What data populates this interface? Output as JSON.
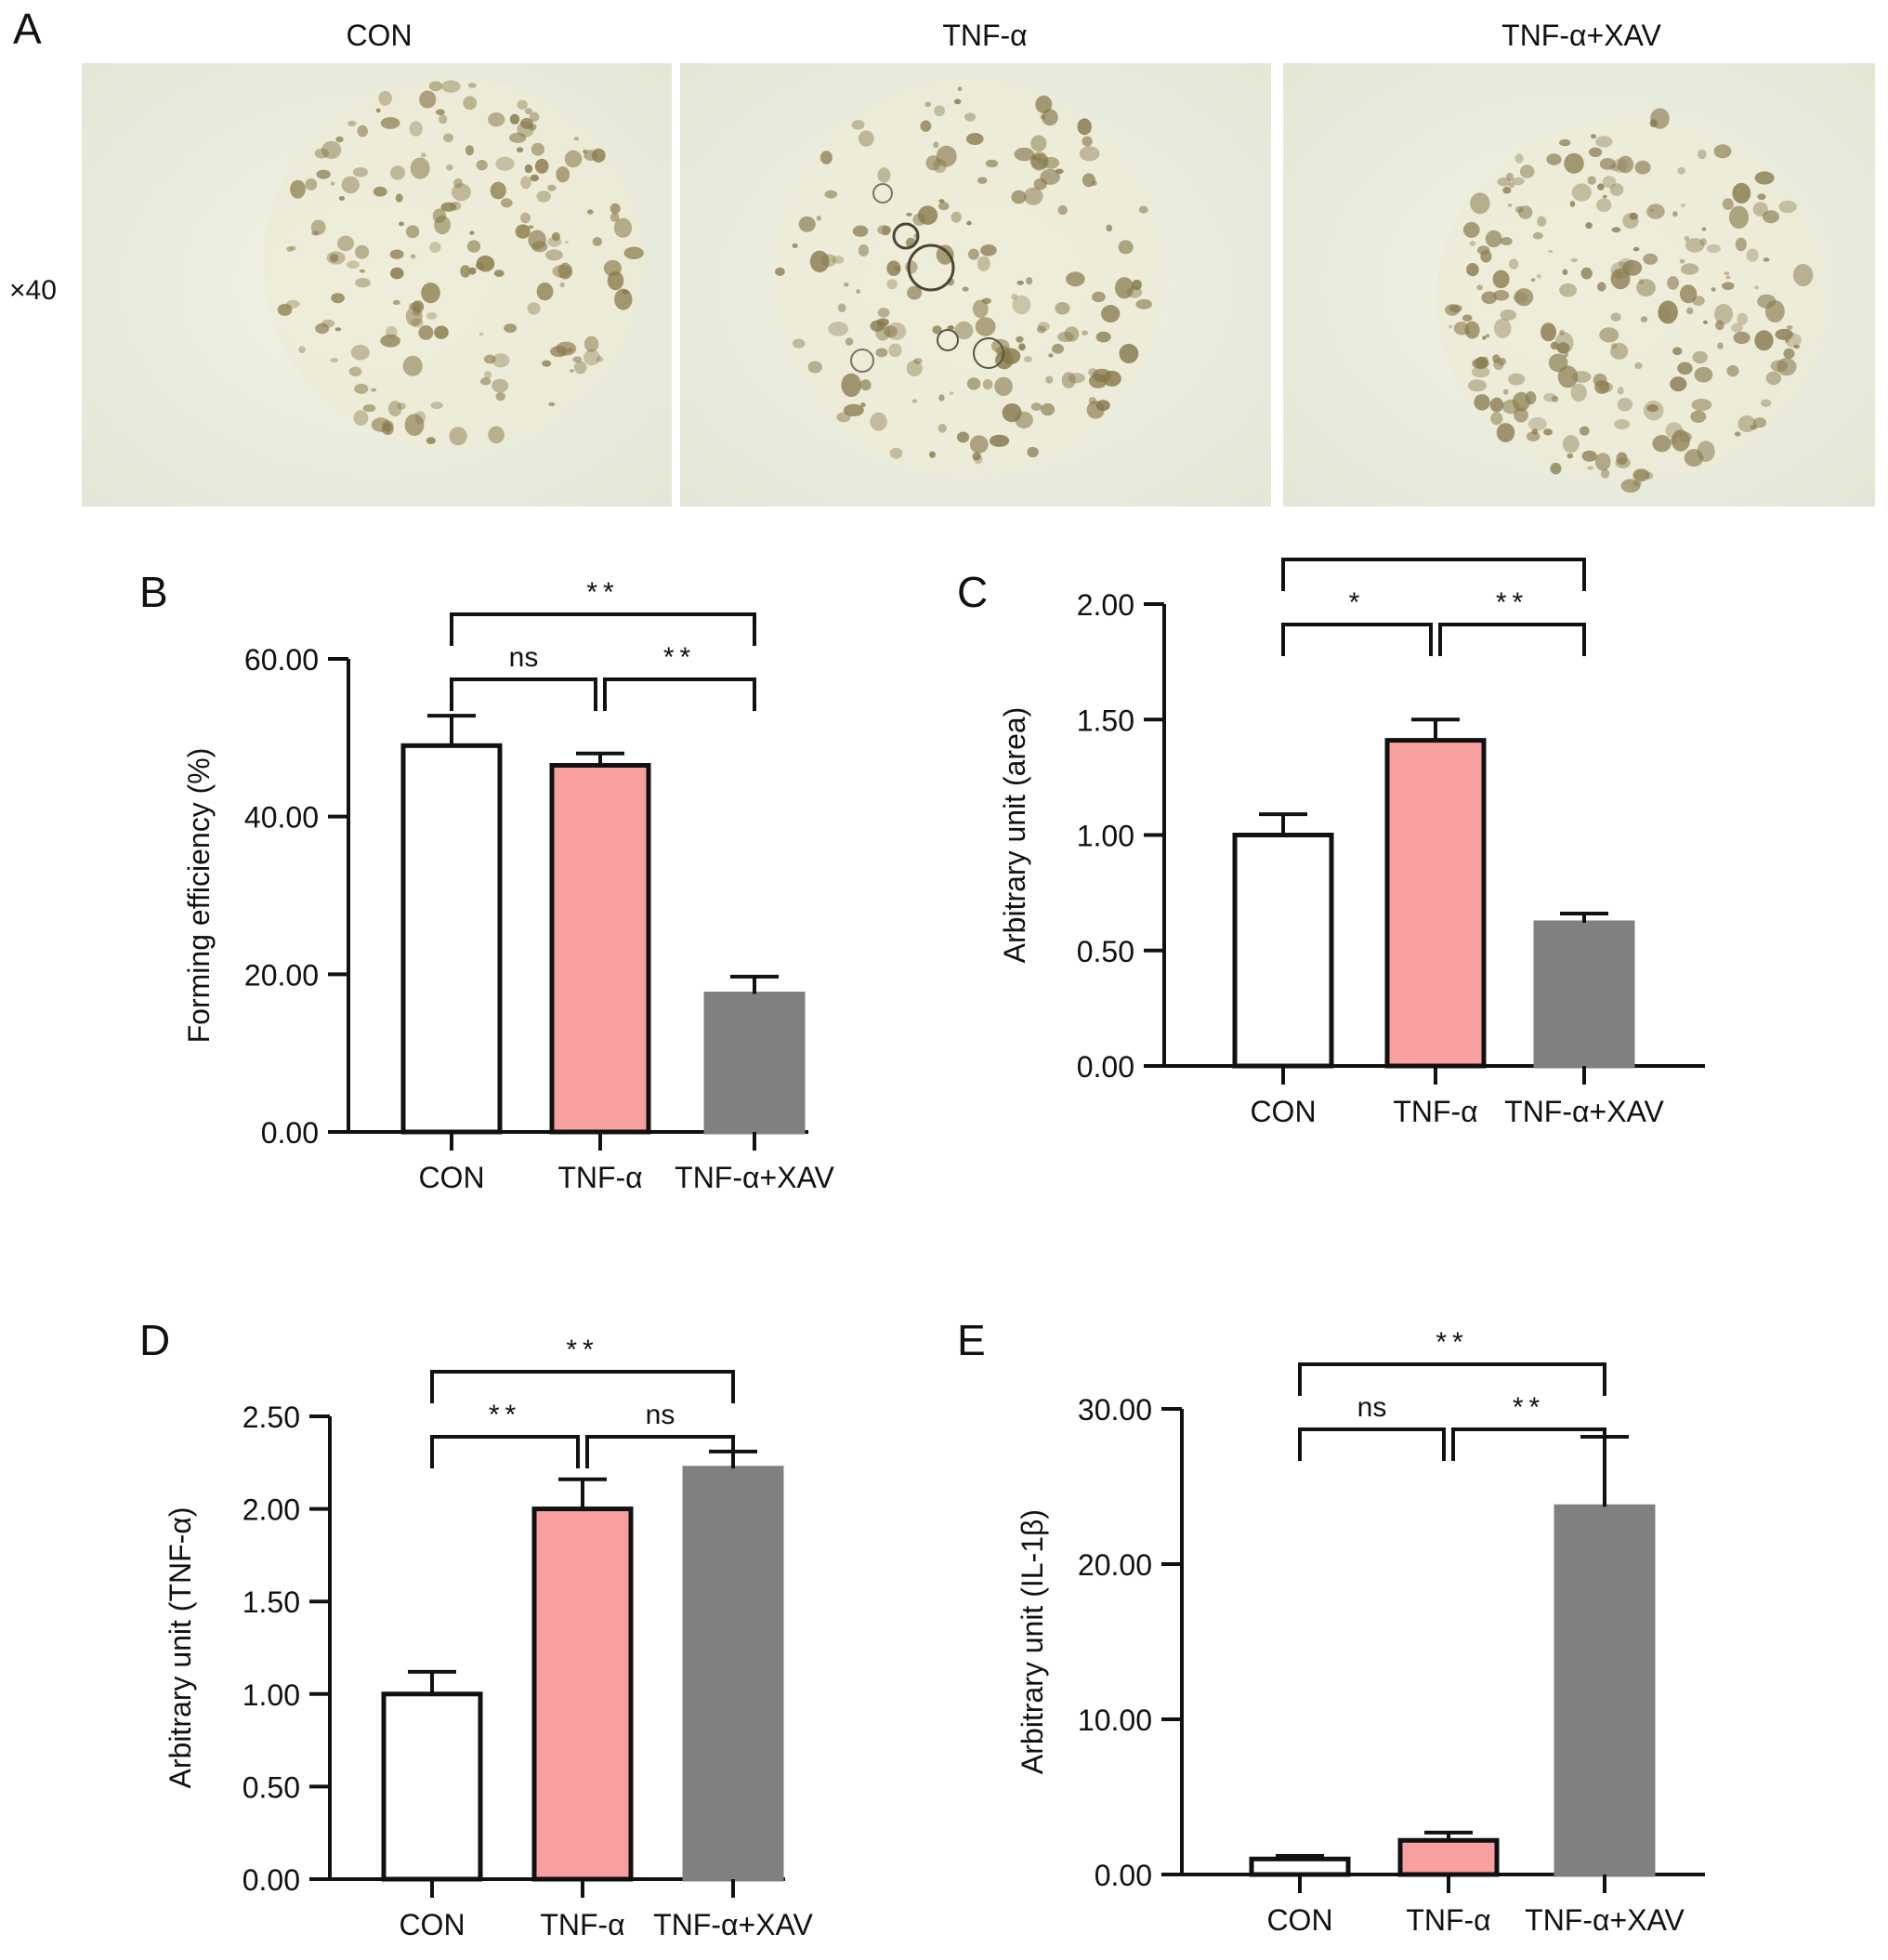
{
  "panel_a": {
    "letter": "A",
    "magnification": "×40",
    "images": [
      {
        "caption": "CON",
        "description": "Organoid culture, scattered small aggregates"
      },
      {
        "caption": "TNF-α",
        "description": "Organoid culture with cyst-like rings"
      },
      {
        "caption": "TNF-α+XAV",
        "description": "Organoid culture, denser small aggregates"
      }
    ]
  },
  "colors": {
    "con": "#ffffff",
    "tnf": "#f8a0a0",
    "tnfxav": "#808080",
    "axis": "#111111"
  },
  "chart_data": [
    {
      "panel": "B",
      "type": "bar",
      "categories": [
        "CON",
        "TNF-α",
        "TNF-α+XAV"
      ],
      "values": [
        49.0,
        46.5,
        17.5
      ],
      "errors": [
        3.8,
        1.5,
        2.2
      ],
      "ylabel": "Forming efficiency (%)",
      "ylim": [
        0,
        60
      ],
      "yticks": [
        "0.00",
        "20.00",
        "40.00",
        "60.00"
      ],
      "ytick_values": [
        0,
        20,
        40,
        60
      ],
      "significance": [
        {
          "from": 0,
          "to": 1,
          "label": "ns"
        },
        {
          "from": 1,
          "to": 2,
          "label": "**"
        },
        {
          "from": 0,
          "to": 2,
          "label": "**"
        }
      ]
    },
    {
      "panel": "C",
      "type": "bar",
      "categories": [
        "CON",
        "TNF-α",
        "TNF-α+XAV"
      ],
      "values": [
        1.0,
        1.41,
        0.62
      ],
      "errors": [
        0.09,
        0.09,
        0.04
      ],
      "ylabel": "Arbitrary unit (area)",
      "ylim": [
        0,
        2
      ],
      "yticks": [
        "0.00",
        "0.50",
        "1.00",
        "1.50",
        "2.00"
      ],
      "ytick_values": [
        0,
        0.5,
        1.0,
        1.5,
        2.0
      ],
      "significance": [
        {
          "from": 0,
          "to": 1,
          "label": "*"
        },
        {
          "from": 1,
          "to": 2,
          "label": "**"
        },
        {
          "from": 0,
          "to": 2,
          "label": "*"
        }
      ]
    },
    {
      "panel": "D",
      "type": "bar",
      "categories": [
        "CON",
        "TNF-α",
        "TNF-α+XAV"
      ],
      "values": [
        1.0,
        2.0,
        2.22
      ],
      "errors": [
        0.12,
        0.16,
        0.09
      ],
      "ylabel": "Arbitrary unit (TNF-α)",
      "ylim": [
        0,
        2.5
      ],
      "yticks": [
        "0.00",
        "0.50",
        "1.00",
        "1.50",
        "2.00",
        "2.50"
      ],
      "ytick_values": [
        0,
        0.5,
        1.0,
        1.5,
        2.0,
        2.5
      ],
      "significance": [
        {
          "from": 0,
          "to": 1,
          "label": "**"
        },
        {
          "from": 1,
          "to": 2,
          "label": "ns"
        },
        {
          "from": 0,
          "to": 2,
          "label": "**"
        }
      ]
    },
    {
      "panel": "E",
      "type": "bar",
      "categories": [
        "CON",
        "TNF-α",
        "TNF-α+XAV"
      ],
      "values": [
        1.0,
        2.2,
        23.7
      ],
      "errors": [
        0.2,
        0.5,
        4.5
      ],
      "ylabel": "Arbitrary unit (IL-1β)",
      "ylim": [
        0,
        30
      ],
      "yticks": [
        "0.00",
        "10.00",
        "20.00",
        "30.00"
      ],
      "ytick_values": [
        0,
        10,
        20,
        30
      ],
      "significance": [
        {
          "from": 0,
          "to": 1,
          "label": "ns"
        },
        {
          "from": 1,
          "to": 2,
          "label": "**"
        },
        {
          "from": 0,
          "to": 2,
          "label": "**"
        }
      ]
    }
  ]
}
